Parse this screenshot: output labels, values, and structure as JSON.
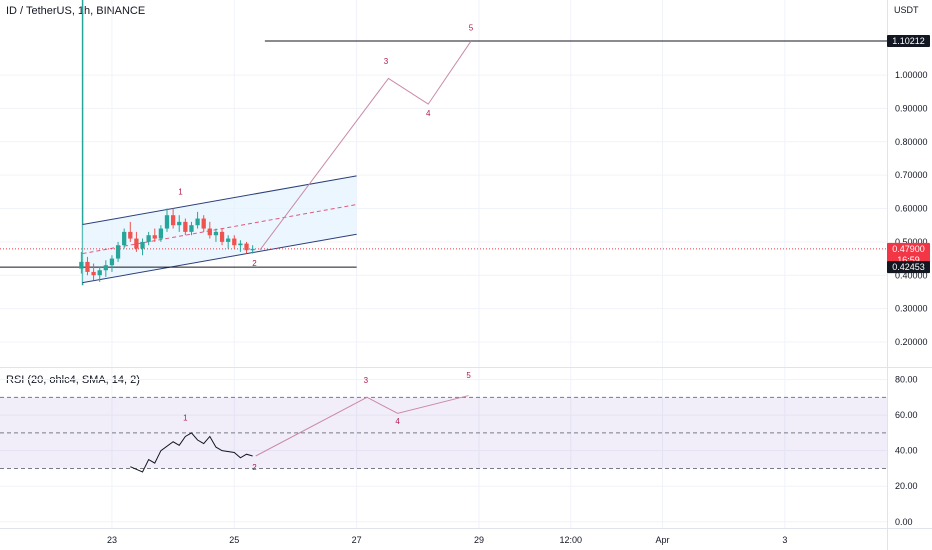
{
  "header": {
    "symbol_title": "ID / TetherUS, 1h, BINANCE",
    "currency": "USDT"
  },
  "rsi_panel": {
    "title": "RSI (20, ohlc4, SMA, 14, 2)"
  },
  "price_tags": {
    "target": {
      "label": "1.10212",
      "value": 1.10212
    },
    "current": {
      "label": "0.47900",
      "value": 0.479,
      "countdown": "16:59"
    },
    "support": {
      "label": "0.42453",
      "value": 0.42453
    }
  },
  "chart_data": [
    {
      "type": "line",
      "panel": "price",
      "ylabel": "USDT",
      "y_ticks": [
        "1.00000",
        "0.90000",
        "0.80000",
        "0.70000",
        "0.60000",
        "0.50000",
        "0.40000",
        "0.30000",
        "0.20000"
      ],
      "y_tick_values": [
        1.0,
        0.9,
        0.8,
        0.7,
        0.6,
        0.5,
        0.4,
        0.3,
        0.2
      ],
      "ylim": [
        0.125,
        1.225
      ],
      "x_ticks": [
        "23",
        "25",
        "27",
        "29",
        "12:00",
        "Apr",
        "3"
      ],
      "x_tick_positions": [
        23,
        25,
        27,
        29,
        30.5,
        32,
        34
      ],
      "xlim": [
        21.17,
        35.67
      ],
      "candles": [
        {
          "x": 22.5,
          "o": 0.42,
          "h": 0.47,
          "l": 0.405,
          "c": 0.44
        },
        {
          "x": 22.6,
          "o": 0.44,
          "h": 0.455,
          "l": 0.4,
          "c": 0.41
        },
        {
          "x": 22.7,
          "o": 0.41,
          "h": 0.435,
          "l": 0.385,
          "c": 0.4
        },
        {
          "x": 22.8,
          "o": 0.4,
          "h": 0.425,
          "l": 0.38,
          "c": 0.415
        },
        {
          "x": 22.9,
          "o": 0.415,
          "h": 0.445,
          "l": 0.395,
          "c": 0.43
        },
        {
          "x": 23.0,
          "o": 0.43,
          "h": 0.46,
          "l": 0.41,
          "c": 0.45
        },
        {
          "x": 23.1,
          "o": 0.45,
          "h": 0.5,
          "l": 0.44,
          "c": 0.49
        },
        {
          "x": 23.2,
          "o": 0.49,
          "h": 0.54,
          "l": 0.48,
          "c": 0.53
        },
        {
          "x": 23.3,
          "o": 0.53,
          "h": 0.56,
          "l": 0.5,
          "c": 0.51
        },
        {
          "x": 23.4,
          "o": 0.51,
          "h": 0.53,
          "l": 0.47,
          "c": 0.48
        },
        {
          "x": 23.5,
          "o": 0.48,
          "h": 0.51,
          "l": 0.46,
          "c": 0.5
        },
        {
          "x": 23.6,
          "o": 0.5,
          "h": 0.53,
          "l": 0.49,
          "c": 0.52
        },
        {
          "x": 23.7,
          "o": 0.52,
          "h": 0.54,
          "l": 0.5,
          "c": 0.51
        },
        {
          "x": 23.8,
          "o": 0.51,
          "h": 0.55,
          "l": 0.5,
          "c": 0.54
        },
        {
          "x": 23.9,
          "o": 0.54,
          "h": 0.6,
          "l": 0.53,
          "c": 0.58
        },
        {
          "x": 24.0,
          "o": 0.58,
          "h": 0.6,
          "l": 0.54,
          "c": 0.55
        },
        {
          "x": 24.1,
          "o": 0.55,
          "h": 0.58,
          "l": 0.53,
          "c": 0.56
        },
        {
          "x": 24.2,
          "o": 0.56,
          "h": 0.57,
          "l": 0.52,
          "c": 0.53
        },
        {
          "x": 24.3,
          "o": 0.53,
          "h": 0.56,
          "l": 0.52,
          "c": 0.55
        },
        {
          "x": 24.4,
          "o": 0.55,
          "h": 0.59,
          "l": 0.54,
          "c": 0.57
        },
        {
          "x": 24.5,
          "o": 0.57,
          "h": 0.58,
          "l": 0.53,
          "c": 0.54
        },
        {
          "x": 24.6,
          "o": 0.54,
          "h": 0.56,
          "l": 0.51,
          "c": 0.52
        },
        {
          "x": 24.7,
          "o": 0.52,
          "h": 0.54,
          "l": 0.5,
          "c": 0.53
        },
        {
          "x": 24.8,
          "o": 0.53,
          "h": 0.54,
          "l": 0.49,
          "c": 0.5
        },
        {
          "x": 24.9,
          "o": 0.5,
          "h": 0.52,
          "l": 0.48,
          "c": 0.51
        },
        {
          "x": 25.0,
          "o": 0.51,
          "h": 0.52,
          "l": 0.48,
          "c": 0.49
        },
        {
          "x": 25.1,
          "o": 0.49,
          "h": 0.505,
          "l": 0.47,
          "c": 0.495
        },
        {
          "x": 25.2,
          "o": 0.495,
          "h": 0.5,
          "l": 0.465,
          "c": 0.475
        },
        {
          "x": 25.3,
          "o": 0.475,
          "h": 0.49,
          "l": 0.465,
          "c": 0.479
        }
      ],
      "projection": [
        {
          "x": 25.42,
          "y": 0.476
        },
        {
          "x": 27.52,
          "y": 0.99
        },
        {
          "x": 28.17,
          "y": 0.913
        },
        {
          "x": 28.87,
          "y": 1.102
        }
      ],
      "wave_labels": [
        {
          "label": "1",
          "x": 24.12,
          "y": 0.642
        },
        {
          "label": "2",
          "x": 25.33,
          "y": 0.427
        },
        {
          "label": "3",
          "x": 27.48,
          "y": 1.033
        },
        {
          "label": "4",
          "x": 28.17,
          "y": 0.878
        },
        {
          "label": "5",
          "x": 28.87,
          "y": 1.134
        }
      ],
      "channel": {
        "upper": [
          [
            22.52,
            0.552
          ],
          [
            27.0,
            0.698
          ]
        ],
        "mid": [
          [
            22.52,
            0.465
          ],
          [
            27.0,
            0.612
          ]
        ],
        "lower": [
          [
            22.52,
            0.378
          ],
          [
            27.0,
            0.523
          ]
        ]
      },
      "horizontal_levels": [
        {
          "value": 1.10212,
          "x_start": 25.5,
          "x_end": 35.67
        },
        {
          "value": 0.42453,
          "x_start": 21.17,
          "x_end": 27.0
        }
      ],
      "listing_marker_x": 22.52,
      "colors": {
        "up": "#26a69a",
        "down": "#ef5350",
        "channel": "#2a3f7d",
        "projection": "#c98aa8",
        "wave_label": "#b2184f",
        "current_price": "#f23645",
        "level": "#131722"
      },
      "grid": true
    },
    {
      "type": "line",
      "panel": "rsi",
      "y_ticks": [
        "80.00",
        "60.00",
        "40.00",
        "20.00",
        "0.00"
      ],
      "y_tick_values": [
        80,
        60,
        40,
        20,
        0
      ],
      "ylim": [
        -3.5,
        86.5
      ],
      "bands": {
        "upper": 70,
        "middle": 50,
        "lower": 30
      },
      "series": [
        {
          "values": [
            [
              23.3,
              31
            ],
            [
              23.5,
              28
            ],
            [
              23.6,
              35
            ],
            [
              23.7,
              33
            ],
            [
              23.8,
              40
            ],
            [
              24.0,
              45
            ],
            [
              24.1,
              43
            ],
            [
              24.2,
              48
            ],
            [
              24.3,
              50
            ],
            [
              24.4,
              46
            ],
            [
              24.5,
              44
            ],
            [
              24.6,
              48
            ],
            [
              24.7,
              42
            ],
            [
              24.8,
              40
            ],
            [
              25.0,
              39
            ],
            [
              25.1,
              36
            ],
            [
              25.2,
              38
            ],
            [
              25.3,
              37
            ]
          ]
        }
      ],
      "projection": [
        [
          25.35,
          37
        ],
        [
          27.17,
          70
        ],
        [
          27.67,
          61
        ],
        [
          28.83,
          71
        ]
      ],
      "wave_labels": [
        {
          "label": "1",
          "x": 24.2,
          "y": 57
        },
        {
          "label": "2",
          "x": 25.33,
          "y": 29
        },
        {
          "label": "3",
          "x": 27.15,
          "y": 78
        },
        {
          "label": "4",
          "x": 27.67,
          "y": 55
        },
        {
          "label": "5",
          "x": 28.83,
          "y": 81
        }
      ],
      "colors": {
        "line": "#131722",
        "band_fill": "#7e57c2",
        "band_line": "#787b86",
        "projection": "#c98aa8",
        "wave_label": "#b2184f"
      }
    }
  ]
}
